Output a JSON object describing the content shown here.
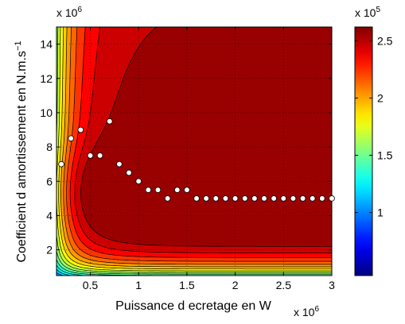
{
  "chart_data": {
    "type": "heatmap",
    "subtype": "filled-contour",
    "title": "",
    "xlabel": "Puissance d ecretage en W",
    "ylabel": "Coefficient d amortissement en N.m.s",
    "ylabel_superscript": "−1",
    "x_multiplier": {
      "base": "x 10",
      "exponent": "6"
    },
    "y_multiplier": {
      "base": "x 10",
      "exponent": "6"
    },
    "colorbar_multiplier": {
      "base": "x 10",
      "exponent": "5"
    },
    "xlim": [
      0.15,
      3.0
    ],
    "ylim": [
      0.5,
      15.0
    ],
    "x_ticks": [
      0.5,
      1,
      1.5,
      2,
      2.5,
      3
    ],
    "x_tick_labels": [
      "0.5",
      "1",
      "1.5",
      "2",
      "2.5",
      "3"
    ],
    "y_ticks": [
      2,
      4,
      6,
      8,
      10,
      12,
      14
    ],
    "y_tick_labels": [
      "2",
      "4",
      "6",
      "8",
      "10",
      "12",
      "14"
    ],
    "colorbar": {
      "colormap": "jet",
      "range": [
        0.45,
        2.62
      ],
      "ticks": [
        1,
        1.5,
        2,
        2.5
      ],
      "tick_labels": [
        "1",
        "1.5",
        "2",
        "2.5"
      ]
    },
    "grid": true,
    "contour_levels": 20,
    "optimal_points": {
      "marker": "white-circle",
      "x": [
        0.2,
        0.3,
        0.4,
        0.5,
        0.6,
        0.7,
        0.8,
        0.9,
        1.0,
        1.1,
        1.2,
        1.3,
        1.4,
        1.5,
        1.6,
        1.7,
        1.8,
        1.9,
        2.0,
        2.1,
        2.2,
        2.3,
        2.4,
        2.5,
        2.6,
        2.7,
        2.8,
        2.9,
        3.0
      ],
      "y": [
        7.0,
        8.5,
        9.0,
        7.5,
        7.5,
        9.5,
        7.0,
        6.5,
        6.0,
        5.5,
        5.5,
        5.0,
        5.5,
        5.5,
        5.0,
        5.0,
        5.0,
        5.0,
        5.0,
        5.0,
        5.0,
        5.0,
        5.0,
        5.0,
        5.0,
        5.0,
        5.0,
        5.0,
        5.0
      ]
    }
  }
}
